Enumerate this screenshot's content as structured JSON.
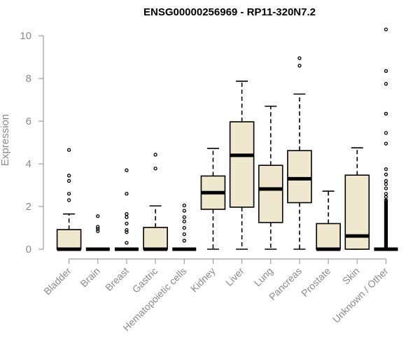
{
  "chart_data": {
    "type": "box",
    "title": "ENSG00000256969 - RP11-320N7.2",
    "ylabel": "Expression",
    "xlabel": "",
    "ylim": [
      0,
      10.3
    ],
    "yticks": [
      0,
      2,
      4,
      6,
      8,
      10
    ],
    "categories": [
      "Bladder",
      "Brain",
      "Breast",
      "Gastric",
      "Hematopoietic cells",
      "Kidney",
      "Liver",
      "Lung",
      "Pancreas",
      "Prostate",
      "Skin",
      "Unknown / Other"
    ],
    "boxes": [
      {
        "min": 0,
        "q1": 0,
        "median": 0,
        "q3": 0.92,
        "max": 1.65,
        "outliers": [
          2.3,
          2.6,
          3.2,
          3.45,
          4.65
        ]
      },
      {
        "min": 0,
        "q1": 0,
        "median": 0,
        "q3": 0,
        "max": 0,
        "outliers": [
          0.85,
          0.95,
          1.05,
          1.55
        ]
      },
      {
        "min": 0,
        "q1": 0,
        "median": 0,
        "q3": 0,
        "max": 0,
        "outliers": [
          0.3,
          0.8,
          0.9,
          1.2,
          1.5,
          1.65,
          2.6,
          3.7
        ]
      },
      {
        "min": 0,
        "q1": 0,
        "median": 0,
        "q3": 1.02,
        "max": 2.03,
        "outliers": [
          3.78,
          4.43
        ]
      },
      {
        "min": 0,
        "q1": 0,
        "median": 0,
        "q3": 0,
        "max": 0,
        "outliers": [
          0.4,
          0.7,
          1.0,
          1.3,
          1.5,
          1.8,
          2.05
        ]
      },
      {
        "min": 0,
        "q1": 1.87,
        "median": 2.65,
        "q3": 3.43,
        "max": 4.72,
        "outliers": []
      },
      {
        "min": 0,
        "q1": 1.97,
        "median": 4.4,
        "q3": 5.97,
        "max": 7.87,
        "outliers": []
      },
      {
        "min": 0,
        "q1": 1.25,
        "median": 2.82,
        "q3": 3.93,
        "max": 6.7,
        "outliers": []
      },
      {
        "min": 0,
        "q1": 2.18,
        "median": 3.3,
        "q3": 4.62,
        "max": 7.27,
        "outliers": [
          8.6,
          8.95
        ]
      },
      {
        "min": 0,
        "q1": 0,
        "median": 0,
        "q3": 1.2,
        "max": 2.72,
        "outliers": []
      },
      {
        "min": 0,
        "q1": 0,
        "median": 0.62,
        "q3": 3.47,
        "max": 4.75,
        "outliers": []
      },
      {
        "min": 0,
        "q1": 0,
        "median": 0,
        "q3": 0,
        "max": 0,
        "outliers": [
          0.05,
          0.1,
          0.15,
          0.2,
          0.25,
          0.3,
          0.35,
          0.4,
          0.45,
          0.5,
          0.55,
          0.6,
          0.65,
          0.7,
          0.75,
          0.8,
          0.85,
          0.9,
          0.95,
          1.0,
          1.05,
          1.1,
          1.15,
          1.2,
          1.25,
          1.3,
          1.35,
          1.4,
          1.45,
          1.5,
          1.55,
          1.6,
          1.65,
          1.7,
          1.75,
          1.8,
          1.85,
          1.9,
          1.95,
          2.0,
          2.05,
          2.1,
          2.15,
          2.2,
          2.25,
          2.3,
          2.45,
          2.6,
          2.85,
          3.05,
          3.2,
          3.5,
          3.75,
          4.95,
          5.45,
          6.35,
          7.75,
          8.35,
          10.3
        ]
      }
    ],
    "grid": false,
    "colors": {
      "box_fill": "#efe8cf",
      "stroke": "#000000",
      "axis": "#8a8a8a"
    }
  }
}
